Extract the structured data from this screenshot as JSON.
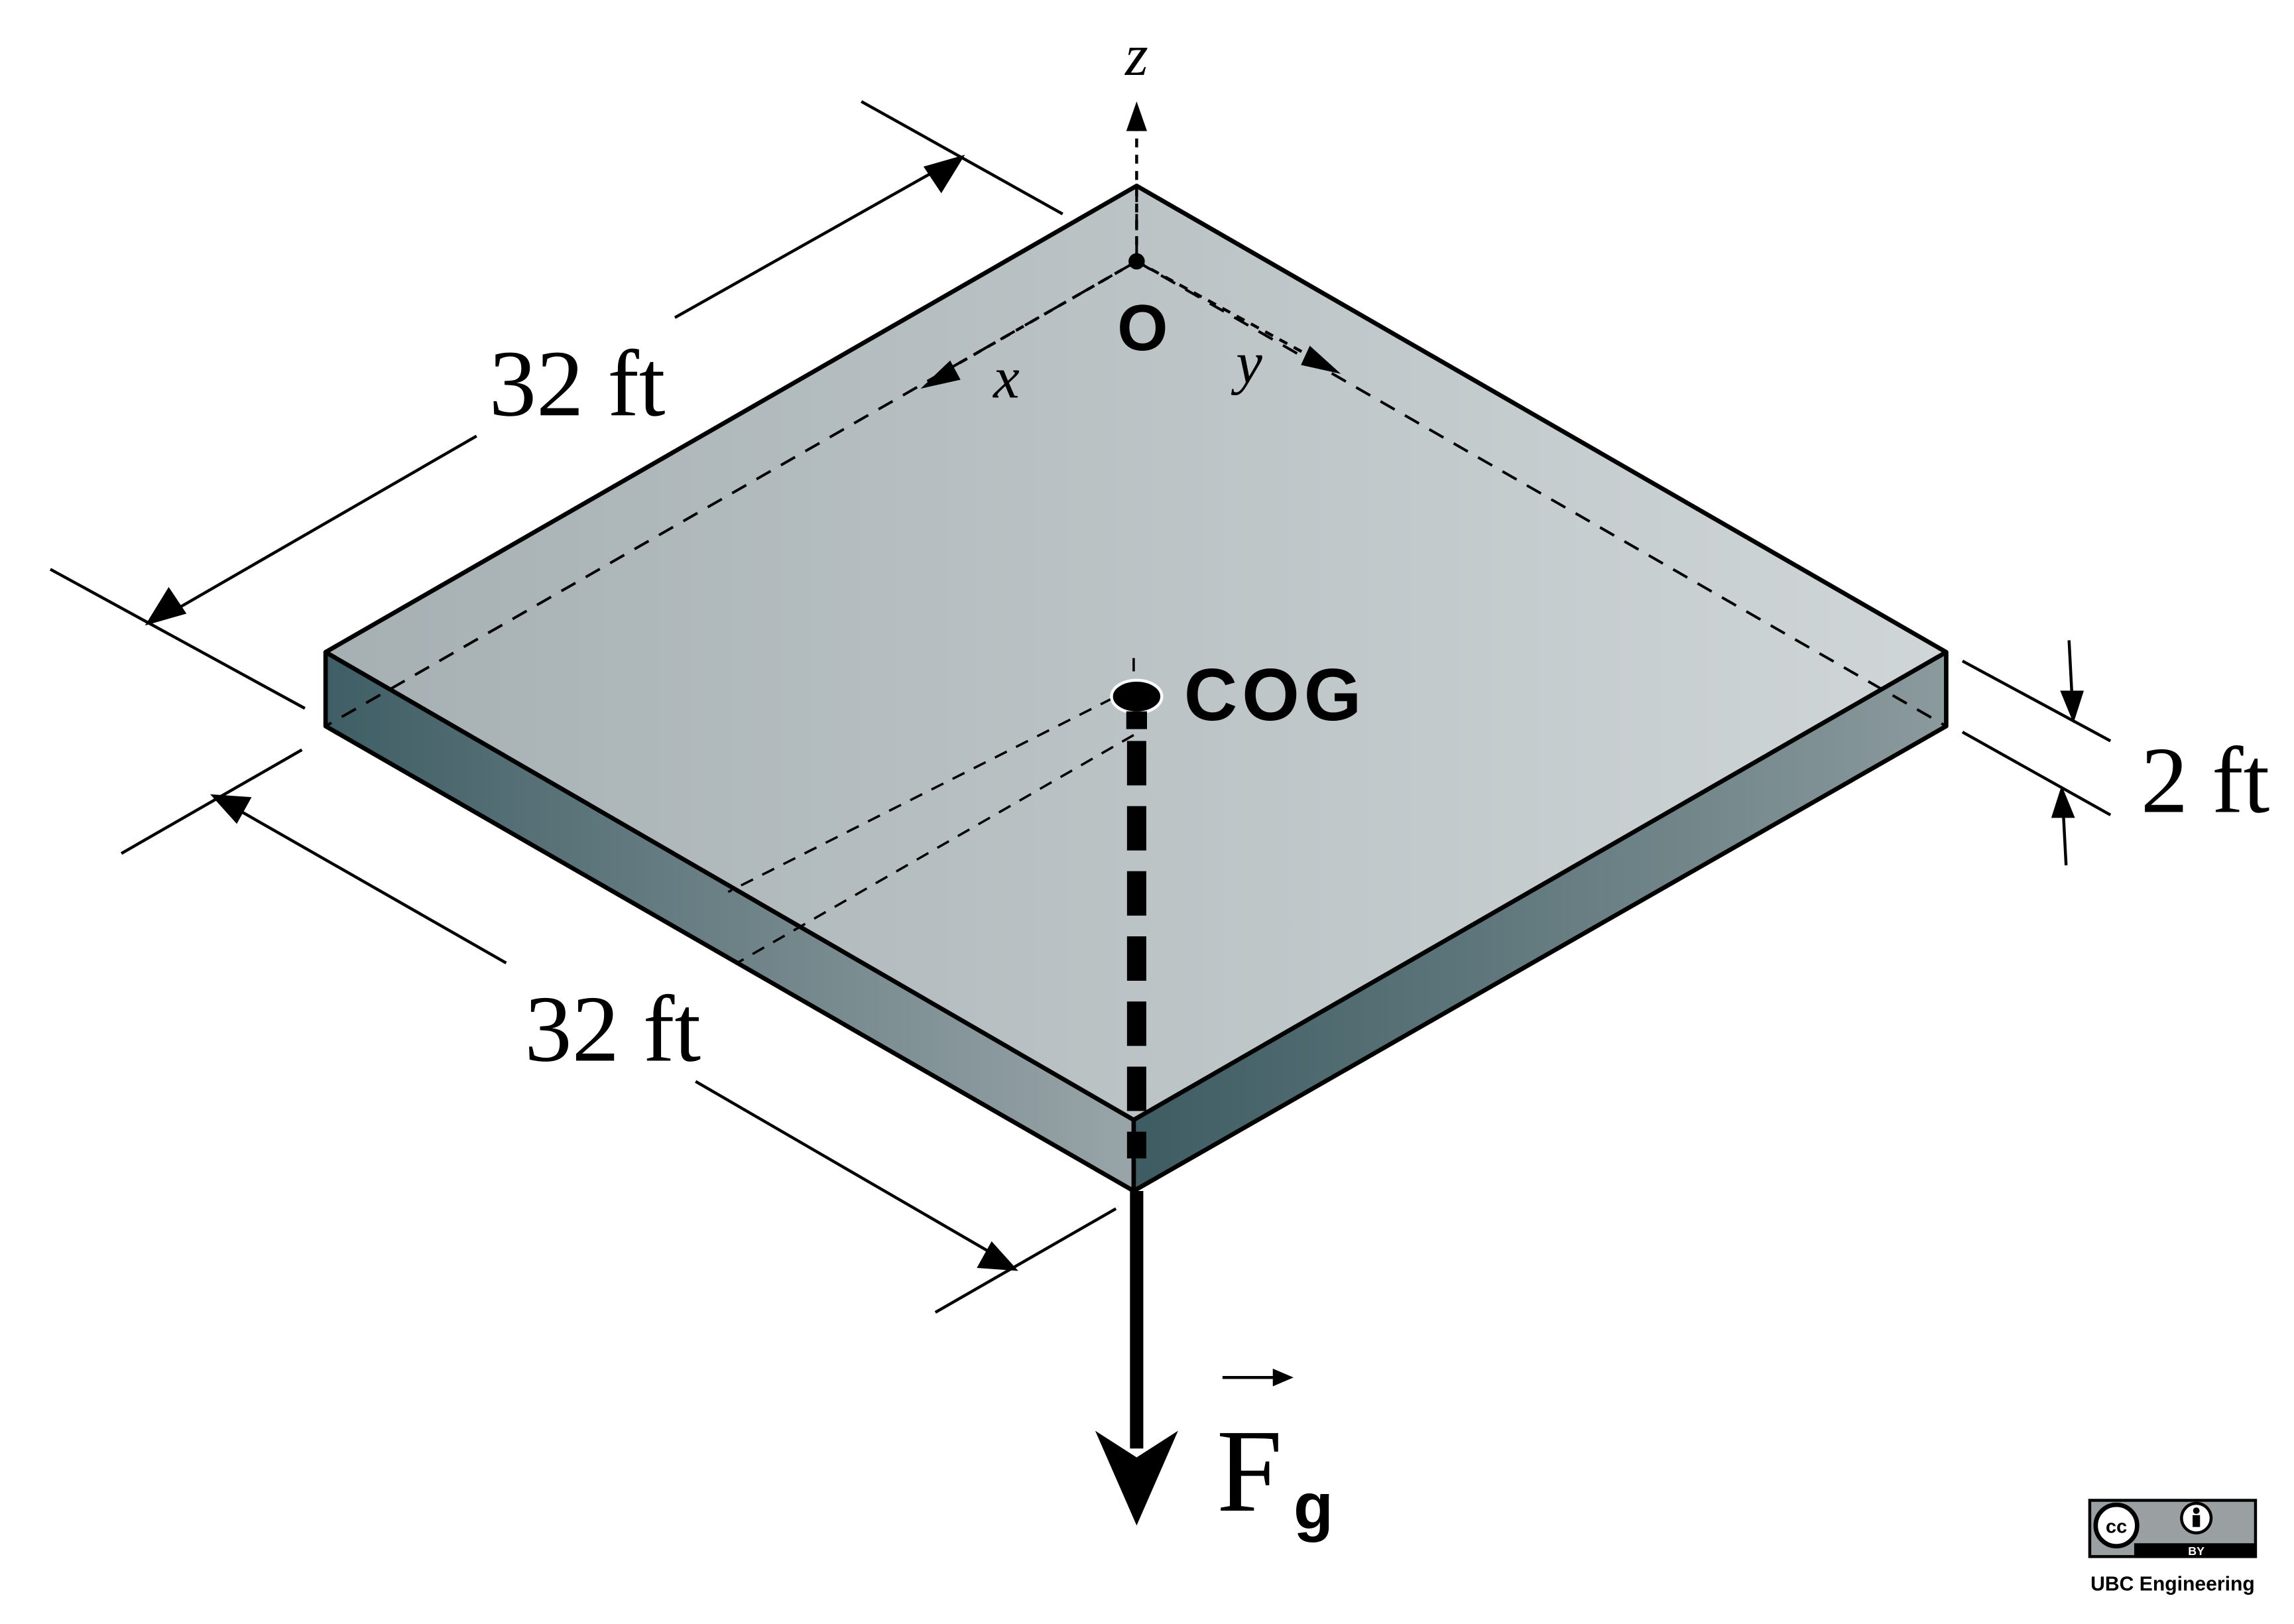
{
  "labels": {
    "z_axis": "z",
    "x_axis": "x",
    "y_axis": "y",
    "origin": "O",
    "cog": "COG",
    "width_dim": "32 ft",
    "length_dim": "32 ft",
    "thickness_dim": "2 ft",
    "force": "F",
    "force_subscript": "g"
  },
  "license": {
    "cc_mark": "cc",
    "by_mark": "BY",
    "owner": "UBC Engineering"
  },
  "colors": {
    "top_face_left": "#a8b2b5",
    "top_face_right": "#cdd3d6",
    "side_dark": "#3e5d63",
    "side_light": "#98a4a7",
    "stroke": "#000000"
  }
}
